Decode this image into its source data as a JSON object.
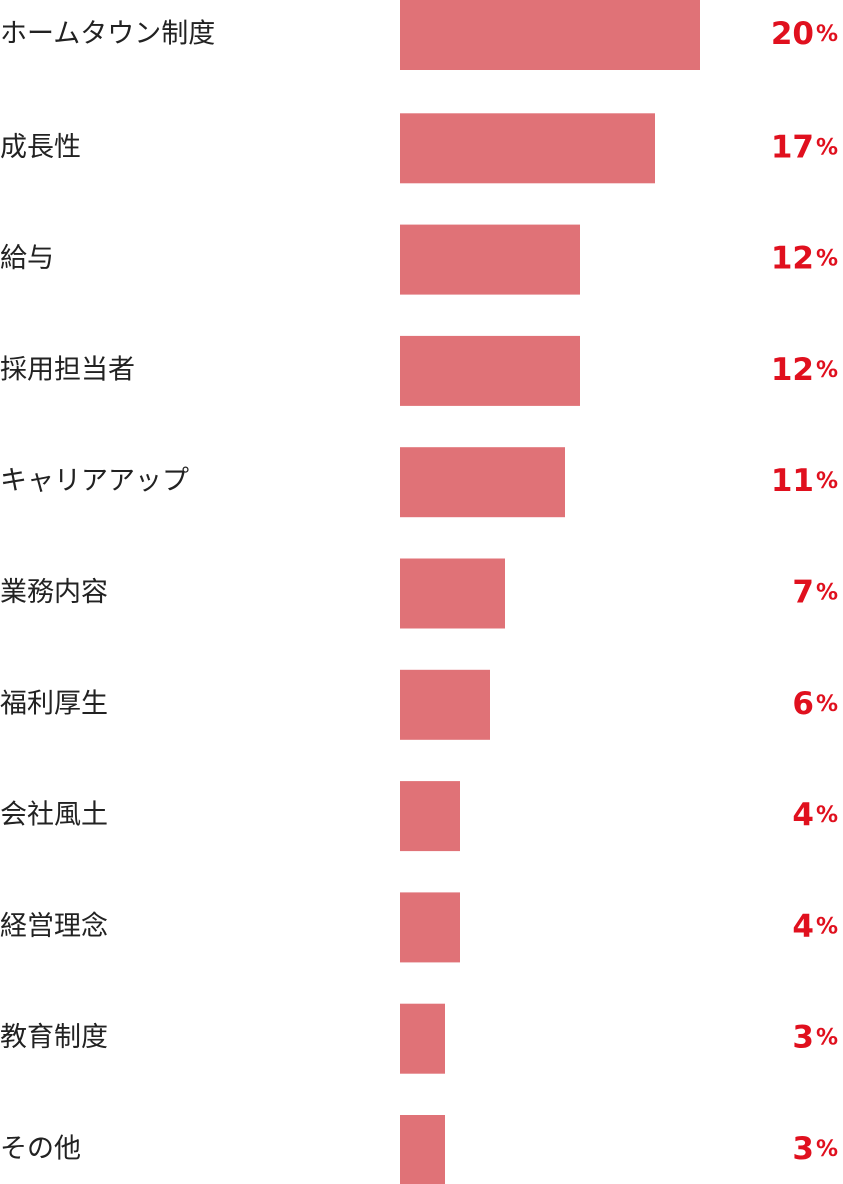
{
  "chart_data": {
    "type": "bar",
    "orientation": "horizontal",
    "color": "#e07277",
    "label_color": "#e0101e",
    "categories": [
      "ホームタウン制度",
      "成長性",
      "給与",
      "採用担当者",
      "キャリアアップ",
      "業務内容",
      "福利厚生",
      "会社風土",
      "経営理念",
      "教育制度",
      "その他"
    ],
    "values": [
      20,
      17,
      12,
      12,
      11,
      7,
      6,
      4,
      4,
      3,
      3
    ],
    "value_labels": [
      "20%",
      "17%",
      "12%",
      "12%",
      "11%",
      "7%",
      "6%",
      "4%",
      "4%",
      "3%",
      "3%"
    ]
  }
}
